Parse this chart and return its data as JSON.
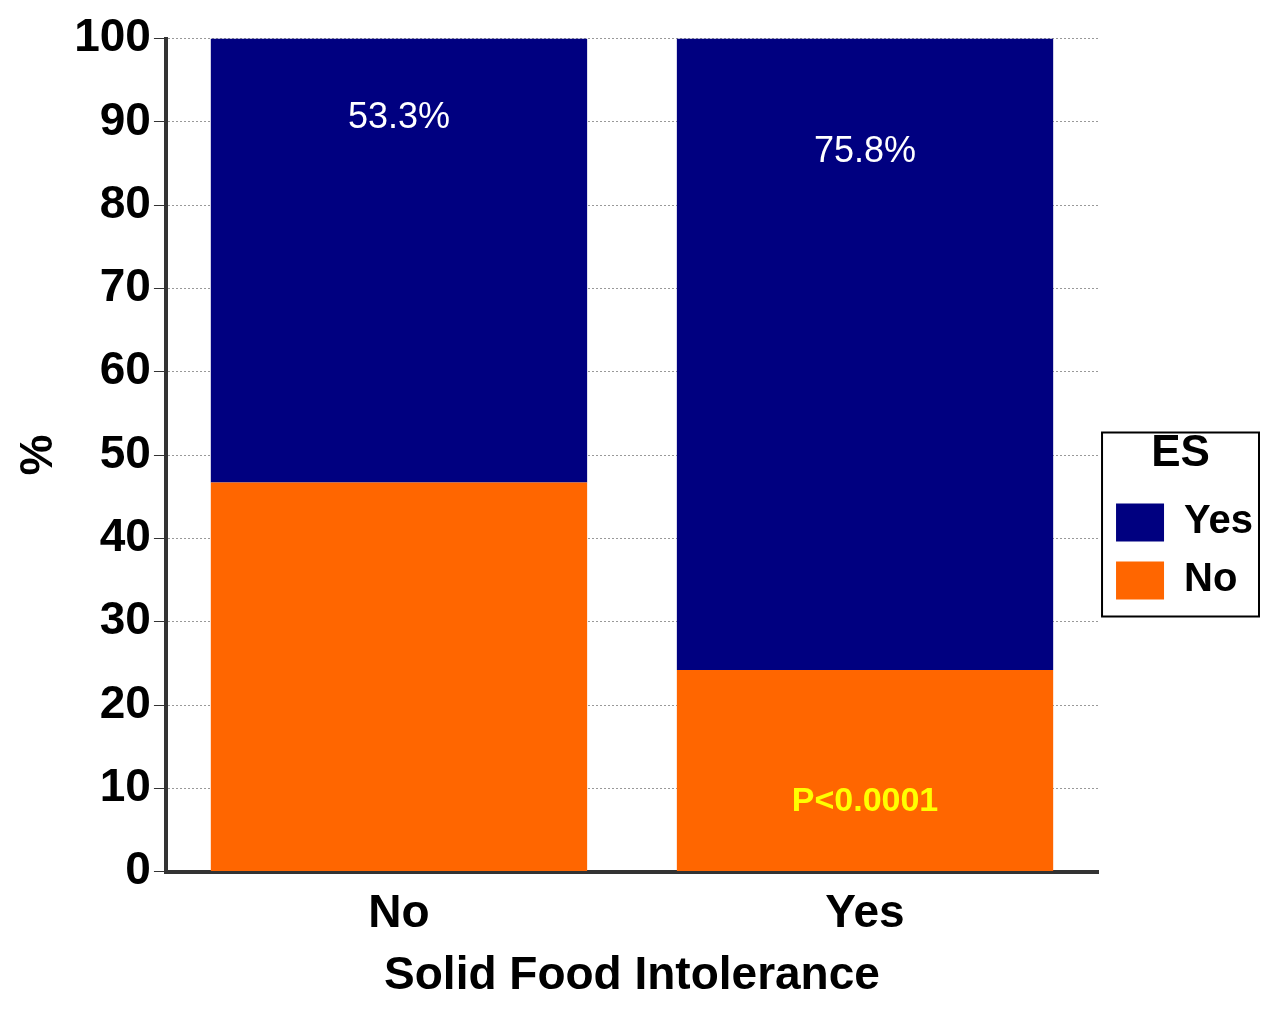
{
  "chart_data": {
    "type": "bar",
    "stacked": true,
    "xlabel": "Solid Food Intolerance",
    "ylabel": "%",
    "categories": [
      "No",
      "Yes"
    ],
    "series": [
      {
        "name": "No",
        "color": "#ff6600",
        "values": [
          46.7,
          24.2
        ]
      },
      {
        "name": "Yes",
        "color": "#000080",
        "values": [
          53.3,
          75.8
        ],
        "value_labels": [
          "53.3%",
          "75.8%"
        ]
      }
    ],
    "legend_title": "ES",
    "legend": "right",
    "ylim": [
      0,
      100
    ],
    "yticks": [
      0,
      10,
      20,
      30,
      40,
      50,
      60,
      70,
      80,
      90,
      100
    ],
    "grid": "y",
    "annotations": [
      "P<0.0001"
    ]
  }
}
